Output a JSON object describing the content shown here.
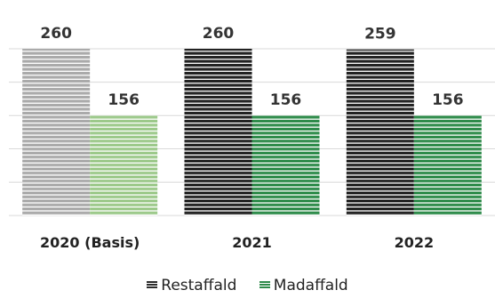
{
  "chart_data": {
    "type": "bar",
    "categories": [
      "2020 (Basis)",
      "2021",
      "2022"
    ],
    "series": [
      {
        "name": "Restaffald",
        "values": [
          260,
          260,
          259
        ],
        "colors": [
          "#aaaaaa",
          "#222222",
          "#222222"
        ]
      },
      {
        "name": "Madaffald",
        "values": [
          156,
          156,
          156
        ],
        "colors": [
          "#9cc98a",
          "#2e8b4a",
          "#2e8b4a"
        ]
      }
    ],
    "ylim": [
      0,
      260
    ],
    "grid": true,
    "legend_position": "bottom",
    "data_labels": true,
    "bar_pattern": "horizontal-stripes",
    "legend_colors": {
      "Restaffald": "#2b2b2b",
      "Madaffald": "#2e8b4a"
    }
  }
}
